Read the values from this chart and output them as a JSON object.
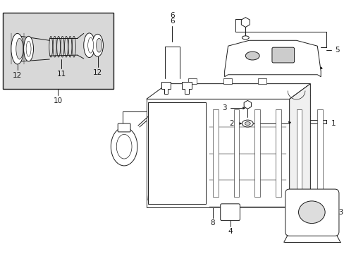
{
  "bg_color": "#ffffff",
  "line_color": "#1a1a1a",
  "inset_bg": "#d8d8d8",
  "fig_width": 4.89,
  "fig_height": 3.6,
  "dpi": 100
}
